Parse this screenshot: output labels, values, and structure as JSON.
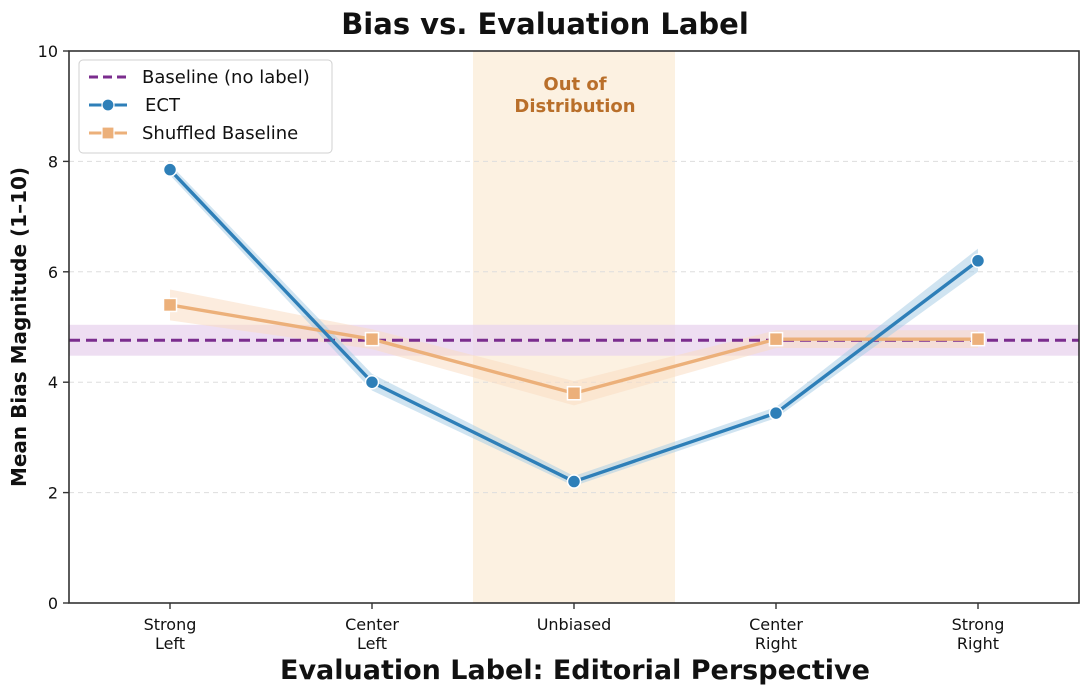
{
  "chart_data": {
    "type": "line",
    "title": "Bias vs. Evaluation Label",
    "xlabel": "Evaluation Label: Editorial Perspective",
    "ylabel": "Mean Bias Magnitude (1–10)",
    "categories": [
      [
        "Strong",
        "Left"
      ],
      [
        "Center",
        "Left"
      ],
      [
        "Unbiased"
      ],
      [
        "Center",
        "Right"
      ],
      [
        "Strong",
        "Right"
      ]
    ],
    "ylim": [
      0,
      10
    ],
    "yticks": [
      "0",
      "2",
      "4",
      "6",
      "8",
      "10"
    ],
    "ytick_values": [
      0,
      2,
      4,
      6,
      8,
      10
    ],
    "grid": "horizontal, dashed",
    "legend_position": "top-left",
    "annotation": {
      "text": [
        "Out of",
        "Distribution"
      ],
      "category_index": 2,
      "color": "#b96f2a",
      "band_color": "#fcf1e1"
    },
    "series": [
      {
        "name": "Baseline (no label)",
        "style": "dashed-horizontal",
        "color": "#7b2d8e",
        "band_color": "#e8d3ee",
        "value": 4.76,
        "band": [
          4.48,
          5.04
        ]
      },
      {
        "name": "ECT",
        "marker": "circle",
        "color": "#2e7fb8",
        "band_color": "#a9cde6",
        "values": [
          7.85,
          4.0,
          2.2,
          3.44,
          6.2
        ],
        "lower": [
          7.75,
          3.85,
          2.12,
          3.35,
          6.0
        ],
        "upper": [
          7.95,
          4.15,
          2.3,
          3.55,
          6.42
        ]
      },
      {
        "name": "Shuffled Baseline",
        "marker": "square",
        "color": "#ecb07a",
        "band_color": "#f9dcc2",
        "values": [
          5.4,
          4.78,
          3.8,
          4.78,
          4.78
        ],
        "lower": [
          5.12,
          4.6,
          3.58,
          4.62,
          4.62
        ],
        "upper": [
          5.68,
          4.96,
          4.02,
          4.94,
          4.94
        ]
      }
    ]
  }
}
